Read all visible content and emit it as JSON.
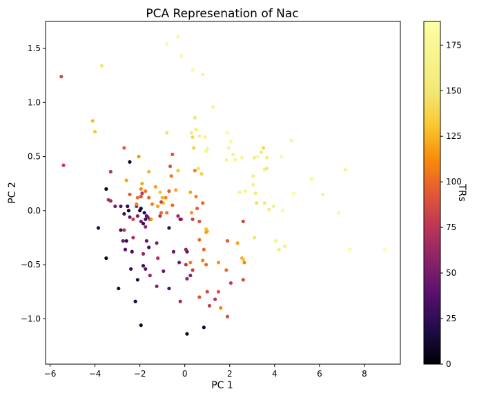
{
  "chart_data": {
    "type": "scatter",
    "title": "PCA Represenation of Nac",
    "xlabel": "PC 1",
    "ylabel": "PC 2",
    "xlim": [
      -6.2,
      9.6
    ],
    "ylim": [
      -1.42,
      1.75
    ],
    "xticks": [
      -6,
      -4,
      -2,
      0,
      2,
      4,
      6,
      8
    ],
    "xtick_labels": [
      "−6",
      "−4",
      "−2",
      "0",
      "2",
      "4",
      "6",
      "8"
    ],
    "yticks": [
      -1.0,
      -0.5,
      0.0,
      0.5,
      1.0,
      1.5
    ],
    "ytick_labels": [
      "−1.0",
      "−0.5",
      "0.0",
      "0.5",
      "1.0",
      "1.5"
    ],
    "grid": false,
    "colormap": "inferno",
    "colorbar": {
      "label": "TRs",
      "range": [
        0,
        188
      ],
      "ticks": [
        0,
        25,
        50,
        75,
        100,
        125,
        150,
        175
      ],
      "tick_labels": [
        "0",
        "25",
        "50",
        "75",
        "100",
        "125",
        "150",
        "175"
      ]
    },
    "points": [
      {
        "x": -5.5,
        "y": 1.24,
        "c": 85
      },
      {
        "x": -5.4,
        "y": 0.42,
        "c": 80
      },
      {
        "x": -3.7,
        "y": 1.34,
        "c": 150
      },
      {
        "x": -4.0,
        "y": 0.73,
        "c": 130
      },
      {
        "x": -4.1,
        "y": 0.83,
        "c": 125
      },
      {
        "x": -0.3,
        "y": 1.61,
        "c": 180
      },
      {
        "x": -0.8,
        "y": 1.54,
        "c": 182
      },
      {
        "x": -0.15,
        "y": 1.43,
        "c": 184
      },
      {
        "x": 0.35,
        "y": 1.3,
        "c": 182
      },
      {
        "x": 0.8,
        "y": 1.26,
        "c": 175
      },
      {
        "x": 1.25,
        "y": 0.96,
        "c": 172
      },
      {
        "x": 0.45,
        "y": 0.86,
        "c": 150
      },
      {
        "x": -0.8,
        "y": 0.72,
        "c": 148
      },
      {
        "x": 0.3,
        "y": 0.72,
        "c": 155
      },
      {
        "x": 0.5,
        "y": 0.75,
        "c": 160
      },
      {
        "x": 0.65,
        "y": 0.69,
        "c": 162
      },
      {
        "x": 0.35,
        "y": 0.68,
        "c": 140
      },
      {
        "x": 0.9,
        "y": 0.68,
        "c": 165
      },
      {
        "x": 0.95,
        "y": 0.55,
        "c": 170
      },
      {
        "x": 1.0,
        "y": 0.57,
        "c": 168
      },
      {
        "x": 0.4,
        "y": 0.58,
        "c": 135
      },
      {
        "x": -0.55,
        "y": 0.52,
        "c": 90
      },
      {
        "x": 1.9,
        "y": 0.72,
        "c": 182
      },
      {
        "x": 2.05,
        "y": 0.64,
        "c": 176
      },
      {
        "x": 1.95,
        "y": 0.58,
        "c": 174
      },
      {
        "x": 2.15,
        "y": 0.52,
        "c": 166
      },
      {
        "x": 1.85,
        "y": 0.47,
        "c": 170
      },
      {
        "x": 2.25,
        "y": 0.47,
        "c": 175
      },
      {
        "x": 2.55,
        "y": 0.49,
        "c": 172
      },
      {
        "x": 3.1,
        "y": 0.49,
        "c": 163
      },
      {
        "x": 3.25,
        "y": 0.5,
        "c": 178
      },
      {
        "x": 3.4,
        "y": 0.54,
        "c": 150
      },
      {
        "x": 3.5,
        "y": 0.58,
        "c": 140
      },
      {
        "x": 3.65,
        "y": 0.49,
        "c": 160
      },
      {
        "x": 4.3,
        "y": 0.5,
        "c": 182
      },
      {
        "x": 4.75,
        "y": 0.65,
        "c": 172
      },
      {
        "x": 3.55,
        "y": 0.38,
        "c": 162
      },
      {
        "x": 3.65,
        "y": 0.39,
        "c": 150
      },
      {
        "x": 3.05,
        "y": 0.32,
        "c": 160
      },
      {
        "x": 3.05,
        "y": 0.24,
        "c": 165
      },
      {
        "x": 2.45,
        "y": 0.17,
        "c": 168
      },
      {
        "x": 2.7,
        "y": 0.18,
        "c": 172
      },
      {
        "x": 3.15,
        "y": 0.16,
        "c": 155
      },
      {
        "x": 3.2,
        "y": 0.07,
        "c": 145
      },
      {
        "x": 3.55,
        "y": 0.07,
        "c": 150
      },
      {
        "x": 3.75,
        "y": 0.01,
        "c": 158
      },
      {
        "x": 3.95,
        "y": 0.04,
        "c": 165
      },
      {
        "x": 4.35,
        "y": 0.0,
        "c": 176
      },
      {
        "x": 4.85,
        "y": 0.16,
        "c": 184
      },
      {
        "x": 5.65,
        "y": 0.29,
        "c": 175
      },
      {
        "x": 6.15,
        "y": 0.15,
        "c": 170
      },
      {
        "x": 6.85,
        "y": -0.02,
        "c": 178
      },
      {
        "x": 7.15,
        "y": 0.38,
        "c": 172
      },
      {
        "x": 7.35,
        "y": -0.36,
        "c": 183
      },
      {
        "x": 8.9,
        "y": -0.36,
        "c": 186
      },
      {
        "x": 3.1,
        "y": -0.25,
        "c": 148
      },
      {
        "x": 4.05,
        "y": -0.28,
        "c": 170
      },
      {
        "x": 4.2,
        "y": -0.36,
        "c": 160
      },
      {
        "x": 4.45,
        "y": -0.33,
        "c": 162
      },
      {
        "x": 2.35,
        "y": -0.3,
        "c": 120
      },
      {
        "x": 2.55,
        "y": -0.44,
        "c": 120
      },
      {
        "x": 2.6,
        "y": -0.45,
        "c": 130
      },
      {
        "x": 2.6,
        "y": -0.64,
        "c": 85
      },
      {
        "x": 2.65,
        "y": -0.48,
        "c": 110
      },
      {
        "x": 2.05,
        "y": -0.67,
        "c": 80
      },
      {
        "x": 1.9,
        "y": -0.28,
        "c": 95
      },
      {
        "x": 2.6,
        "y": -0.1,
        "c": 85
      },
      {
        "x": 1.85,
        "y": -0.55,
        "c": 100
      },
      {
        "x": 1.5,
        "y": -0.48,
        "c": 115
      },
      {
        "x": 1.5,
        "y": -0.75,
        "c": 90
      },
      {
        "x": 1.35,
        "y": -0.82,
        "c": 75
      },
      {
        "x": 1.6,
        "y": -0.9,
        "c": 110
      },
      {
        "x": 1.9,
        "y": -0.98,
        "c": 90
      },
      {
        "x": 0.95,
        "y": -0.17,
        "c": 130
      },
      {
        "x": 1.0,
        "y": -0.19,
        "c": 125
      },
      {
        "x": 0.95,
        "y": -0.2,
        "c": 118
      },
      {
        "x": 0.85,
        "y": -0.36,
        "c": 100
      },
      {
        "x": 0.95,
        "y": -0.5,
        "c": 100
      },
      {
        "x": 0.8,
        "y": -0.46,
        "c": 110
      },
      {
        "x": 0.65,
        "y": -0.27,
        "c": 100
      },
      {
        "x": 1.0,
        "y": -0.75,
        "c": 85
      },
      {
        "x": 0.65,
        "y": -0.8,
        "c": 90
      },
      {
        "x": 1.1,
        "y": -0.88,
        "c": 80
      },
      {
        "x": 0.85,
        "y": -1.08,
        "c": 12
      },
      {
        "x": 0.1,
        "y": -1.14,
        "c": 5
      },
      {
        "x": -0.2,
        "y": -0.84,
        "c": 65
      },
      {
        "x": -0.7,
        "y": -0.72,
        "c": 35
      },
      {
        "x": -1.25,
        "y": -0.7,
        "c": 55
      },
      {
        "x": -1.95,
        "y": -1.06,
        "c": 10
      },
      {
        "x": -2.2,
        "y": -0.84,
        "c": 15
      },
      {
        "x": -2.1,
        "y": -0.64,
        "c": 20
      },
      {
        "x": -2.95,
        "y": -0.72,
        "c": 10
      },
      {
        "x": -0.95,
        "y": -0.56,
        "c": 45
      },
      {
        "x": -1.55,
        "y": -0.6,
        "c": 60
      },
      {
        "x": -1.75,
        "y": -0.54,
        "c": 40
      },
      {
        "x": -1.85,
        "y": -0.51,
        "c": 30
      },
      {
        "x": -2.4,
        "y": -0.54,
        "c": 25
      },
      {
        "x": -0.25,
        "y": -0.48,
        "c": 50
      },
      {
        "x": 0.05,
        "y": -0.5,
        "c": 75
      },
      {
        "x": 0.1,
        "y": -0.63,
        "c": 60
      },
      {
        "x": 0.35,
        "y": -0.55,
        "c": 80
      },
      {
        "x": 0.25,
        "y": -0.6,
        "c": 55
      },
      {
        "x": 0.1,
        "y": -0.38,
        "c": 40
      },
      {
        "x": 0.25,
        "y": -0.48,
        "c": 110
      },
      {
        "x": 0.05,
        "y": -0.36,
        "c": 60
      },
      {
        "x": -0.5,
        "y": -0.38,
        "c": 45
      },
      {
        "x": -0.7,
        "y": -0.16,
        "c": 25
      },
      {
        "x": -1.2,
        "y": -0.44,
        "c": 70
      },
      {
        "x": -1.25,
        "y": -0.3,
        "c": 55
      },
      {
        "x": -1.6,
        "y": -0.34,
        "c": 35
      },
      {
        "x": -1.85,
        "y": -0.4,
        "c": 60
      },
      {
        "x": -1.7,
        "y": -0.28,
        "c": 45
      },
      {
        "x": -2.35,
        "y": -0.38,
        "c": 30
      },
      {
        "x": -2.6,
        "y": -0.28,
        "c": 25
      },
      {
        "x": -2.75,
        "y": -0.28,
        "c": 45
      },
      {
        "x": -2.85,
        "y": -0.18,
        "c": 30
      },
      {
        "x": -2.65,
        "y": -0.36,
        "c": 35
      },
      {
        "x": -3.5,
        "y": -0.44,
        "c": 8
      },
      {
        "x": -3.85,
        "y": -0.16,
        "c": 20
      },
      {
        "x": -2.7,
        "y": -0.18,
        "c": 75
      },
      {
        "x": -2.3,
        "y": -0.25,
        "c": 70
      },
      {
        "x": -2.3,
        "y": -0.08,
        "c": 80
      },
      {
        "x": -1.95,
        "y": -0.1,
        "c": 50
      },
      {
        "x": -1.75,
        "y": -0.08,
        "c": 30
      },
      {
        "x": -1.55,
        "y": -0.08,
        "c": 45
      },
      {
        "x": -1.75,
        "y": -0.15,
        "c": 60
      },
      {
        "x": -1.85,
        "y": -0.12,
        "c": 25
      },
      {
        "x": -2.0,
        "y": 0.0,
        "c": 15
      },
      {
        "x": -1.95,
        "y": 0.02,
        "c": 10
      },
      {
        "x": -1.8,
        "y": -0.02,
        "c": 20
      },
      {
        "x": -1.7,
        "y": -0.05,
        "c": 35
      },
      {
        "x": -2.1,
        "y": -0.05,
        "c": 55
      },
      {
        "x": -2.15,
        "y": 0.04,
        "c": 60
      },
      {
        "x": -2.45,
        "y": -0.06,
        "c": 40
      },
      {
        "x": -2.5,
        "y": 0.0,
        "c": 10
      },
      {
        "x": -2.55,
        "y": 0.04,
        "c": 20
      },
      {
        "x": -2.7,
        "y": -0.03,
        "c": 30
      },
      {
        "x": -2.85,
        "y": 0.04,
        "c": 35
      },
      {
        "x": -3.1,
        "y": 0.04,
        "c": 50
      },
      {
        "x": -3.3,
        "y": 0.09,
        "c": 65
      },
      {
        "x": -3.5,
        "y": 0.2,
        "c": 5
      },
      {
        "x": -3.4,
        "y": 0.1,
        "c": 70
      },
      {
        "x": -3.3,
        "y": 0.36,
        "c": 75
      },
      {
        "x": -2.45,
        "y": 0.15,
        "c": 95
      },
      {
        "x": -2.1,
        "y": 0.12,
        "c": 100
      },
      {
        "x": -2.15,
        "y": 0.06,
        "c": 110
      },
      {
        "x": -1.95,
        "y": 0.13,
        "c": 90
      },
      {
        "x": -1.9,
        "y": 0.16,
        "c": 75
      },
      {
        "x": -1.95,
        "y": 0.2,
        "c": 112
      },
      {
        "x": -1.75,
        "y": 0.18,
        "c": 105
      },
      {
        "x": -1.6,
        "y": 0.12,
        "c": 95
      },
      {
        "x": -2.6,
        "y": 0.28,
        "c": 120
      },
      {
        "x": -2.7,
        "y": 0.58,
        "c": 95
      },
      {
        "x": -2.45,
        "y": 0.45,
        "c": 8
      },
      {
        "x": -2.05,
        "y": 0.5,
        "c": 115
      },
      {
        "x": -1.9,
        "y": 0.25,
        "c": 120
      },
      {
        "x": -1.6,
        "y": 0.36,
        "c": 125
      },
      {
        "x": -1.3,
        "y": 0.22,
        "c": 120
      },
      {
        "x": -1.1,
        "y": 0.17,
        "c": 130
      },
      {
        "x": -1.0,
        "y": 0.12,
        "c": 125
      },
      {
        "x": -0.85,
        "y": 0.12,
        "c": 110
      },
      {
        "x": -0.7,
        "y": 0.18,
        "c": 95
      },
      {
        "x": -0.4,
        "y": 0.19,
        "c": 120
      },
      {
        "x": -0.6,
        "y": 0.32,
        "c": 105
      },
      {
        "x": -0.65,
        "y": 0.41,
        "c": 90
      },
      {
        "x": -0.3,
        "y": 0.37,
        "c": 130
      },
      {
        "x": 0.45,
        "y": 0.37,
        "c": 110
      },
      {
        "x": 0.6,
        "y": 0.39,
        "c": 145
      },
      {
        "x": 0.75,
        "y": 0.34,
        "c": 135
      },
      {
        "x": 0.25,
        "y": 0.17,
        "c": 120
      },
      {
        "x": 0.5,
        "y": 0.13,
        "c": 110
      },
      {
        "x": 0.8,
        "y": 0.07,
        "c": 100
      },
      {
        "x": 0.55,
        "y": 0.02,
        "c": 95
      },
      {
        "x": 0.3,
        "y": -0.02,
        "c": 115
      },
      {
        "x": 0.65,
        "y": -0.1,
        "c": 90
      },
      {
        "x": 0.35,
        "y": -0.08,
        "c": 80
      },
      {
        "x": -0.15,
        "y": -0.08,
        "c": 95
      },
      {
        "x": -0.3,
        "y": -0.05,
        "c": 65
      },
      {
        "x": -0.55,
        "y": 0.05,
        "c": 100
      },
      {
        "x": -0.95,
        "y": 0.07,
        "c": 130
      },
      {
        "x": -1.2,
        "y": 0.04,
        "c": 120
      },
      {
        "x": -1.45,
        "y": 0.06,
        "c": 110
      },
      {
        "x": -1.5,
        "y": -0.08,
        "c": 115
      },
      {
        "x": -1.65,
        "y": -0.06,
        "c": 50
      },
      {
        "x": -1.05,
        "y": -0.02,
        "c": 100
      },
      {
        "x": -1.1,
        "y": -0.05,
        "c": 75
      },
      {
        "x": -1.05,
        "y": 0.08,
        "c": 85
      },
      {
        "x": -0.8,
        "y": -0.02,
        "c": 105
      },
      {
        "x": -0.2,
        "y": -0.08,
        "c": 45
      }
    ]
  }
}
